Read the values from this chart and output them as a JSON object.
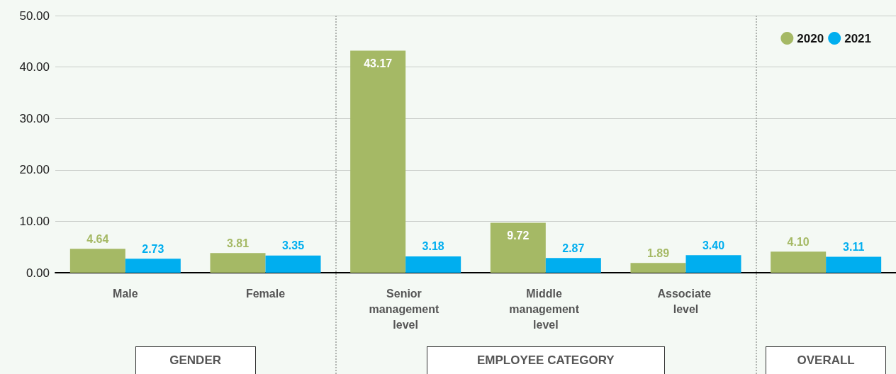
{
  "chart_data": {
    "type": "bar",
    "categories": [
      "Male",
      "Female",
      "Senior management level",
      "Middle management level",
      "Associate level",
      null
    ],
    "series": [
      {
        "name": "2020",
        "color": "#a5b965",
        "values": [
          4.64,
          3.81,
          43.17,
          9.72,
          1.89,
          4.1
        ],
        "value_labels": [
          "4.64",
          "3.81",
          "43.17",
          "9.72",
          "1.89",
          "4.10"
        ]
      },
      {
        "name": "2021",
        "color": "#00aeef",
        "values": [
          2.73,
          3.35,
          3.18,
          2.87,
          3.4,
          3.11
        ],
        "value_labels": [
          "2.73",
          "3.35",
          "3.18",
          "2.87",
          "3.40",
          "3.11"
        ]
      }
    ],
    "ylim": [
      0,
      50
    ],
    "yticks": [
      {
        "value": 0,
        "label": "0.00"
      },
      {
        "value": 10,
        "label": "10.00"
      },
      {
        "value": 20,
        "label": "20.00"
      },
      {
        "value": 30,
        "label": "30.00"
      },
      {
        "value": 40,
        "label": "40.00"
      },
      {
        "value": 50,
        "label": "50.00"
      }
    ],
    "grid": "y",
    "legend": "top right",
    "annotations": [
      "GENDER",
      "EMPLOYEE CATEGORY",
      "OVERALL"
    ]
  }
}
